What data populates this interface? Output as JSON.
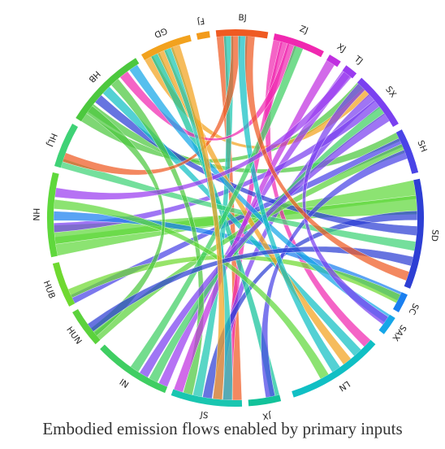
{
  "caption": "Embodied emission flows enabled by primary inputs",
  "diagram": {
    "type": "chord",
    "regions": [
      {
        "name": "SD",
        "color": "#2d3fd4"
      },
      {
        "name": "SC",
        "color": "#1a7ff0"
      },
      {
        "name": "SAX",
        "color": "#15a6e8"
      },
      {
        "name": "LN",
        "color": "#10bfc4"
      },
      {
        "name": "JX",
        "color": "#12c29a"
      },
      {
        "name": "JS",
        "color": "#19c6b0"
      },
      {
        "name": "IN",
        "color": "#3fce62"
      },
      {
        "name": "HUN",
        "color": "#5bd23c"
      },
      {
        "name": "HUB",
        "color": "#6fd930"
      },
      {
        "name": "HN",
        "color": "#5fd83c"
      },
      {
        "name": "HLJ",
        "color": "#3fd276"
      },
      {
        "name": "HB",
        "color": "#4cc83e"
      },
      {
        "name": "GD",
        "color": "#f2a21e"
      },
      {
        "name": "FJ",
        "color": "#f29a1a"
      },
      {
        "name": "BJ",
        "color": "#ef5a22"
      },
      {
        "name": "ZJ",
        "color": "#f028b0"
      },
      {
        "name": "XJ",
        "color": "#c030e0"
      },
      {
        "name": "TJ",
        "color": "#9a3cf0"
      },
      {
        "name": "SX",
        "color": "#7a40f0"
      },
      {
        "name": "SH",
        "color": "#4a44e6"
      }
    ]
  }
}
